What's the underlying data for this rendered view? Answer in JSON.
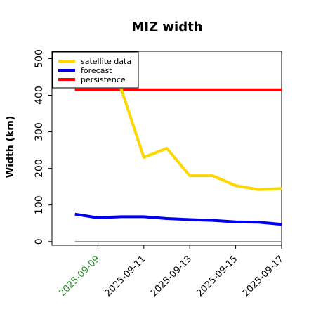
{
  "chart_data": {
    "type": "line",
    "title": "MIZ width",
    "xlabel": "",
    "ylabel": "Width (km)",
    "x": [
      "2025-09-08",
      "2025-09-09",
      "2025-09-10",
      "2025-09-11",
      "2025-09-12",
      "2025-09-13",
      "2025-09-14",
      "2025-09-15",
      "2025-09-16",
      "2025-09-17"
    ],
    "xlim": [
      "2025-09-07",
      "2025-09-17"
    ],
    "ylim": [
      -10,
      520
    ],
    "x_ticks": [
      {
        "label": "2025-09-09",
        "highlight": true
      },
      {
        "label": "2025-09-11",
        "highlight": false
      },
      {
        "label": "2025-09-13",
        "highlight": false
      },
      {
        "label": "2025-09-15",
        "highlight": false
      },
      {
        "label": "2025-09-17",
        "highlight": false
      }
    ],
    "y_ticks": [
      "0",
      "100",
      "200",
      "300",
      "400",
      "500"
    ],
    "grid": false,
    "legend_position": "top-left",
    "series": [
      {
        "name": "satellite data",
        "color": "#FFD700",
        "values": [
          null,
          null,
          420,
          230,
          255,
          180,
          180,
          153,
          142,
          145
        ]
      },
      {
        "name": "forecast",
        "color": "#0000EE",
        "values": [
          75,
          65,
          68,
          68,
          63,
          60,
          58,
          54,
          53,
          47
        ]
      },
      {
        "name": "persistence",
        "color": "#FF0000",
        "values": [
          415,
          415,
          415,
          415,
          415,
          415,
          415,
          415,
          415,
          415
        ]
      }
    ],
    "zero_line_color": "#999999",
    "highlight_tick_color": "#228B22"
  }
}
